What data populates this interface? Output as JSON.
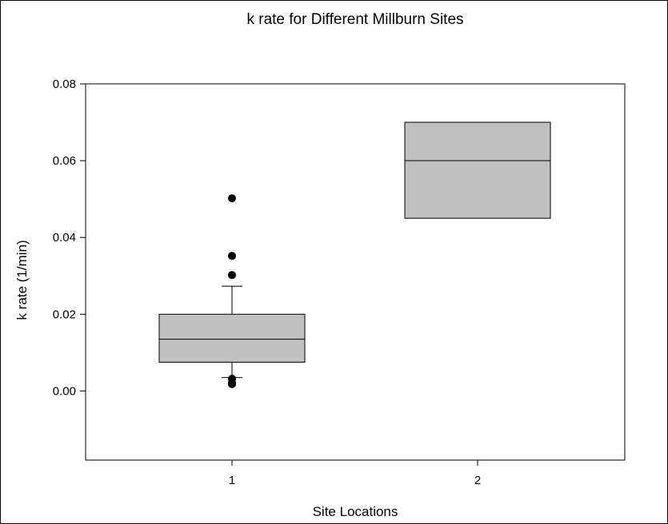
{
  "chart_data": {
    "type": "box",
    "title": "k rate for Different Millburn Sites",
    "xlabel": "Site Locations",
    "ylabel": "k rate (1/min)",
    "ylim": [
      -0.018,
      0.08
    ],
    "yticks": [
      "0.00",
      "0.02",
      "0.04",
      "0.06",
      "0.08"
    ],
    "categories": [
      "1",
      "2"
    ],
    "grid": false,
    "box_color": "#c0c0c0",
    "boxes": [
      {
        "category": "1",
        "q1": 0.0075,
        "median": 0.0135,
        "q3": 0.02,
        "whisker_low": 0.0035,
        "whisker_high": 0.0273,
        "outliers": [
          0.0502,
          0.0352,
          0.0302,
          0.0032,
          0.0022,
          0.0018
        ]
      },
      {
        "category": "2",
        "q1": 0.045,
        "median": 0.06,
        "q3": 0.07,
        "whisker_low": null,
        "whisker_high": null,
        "outliers": []
      }
    ]
  }
}
